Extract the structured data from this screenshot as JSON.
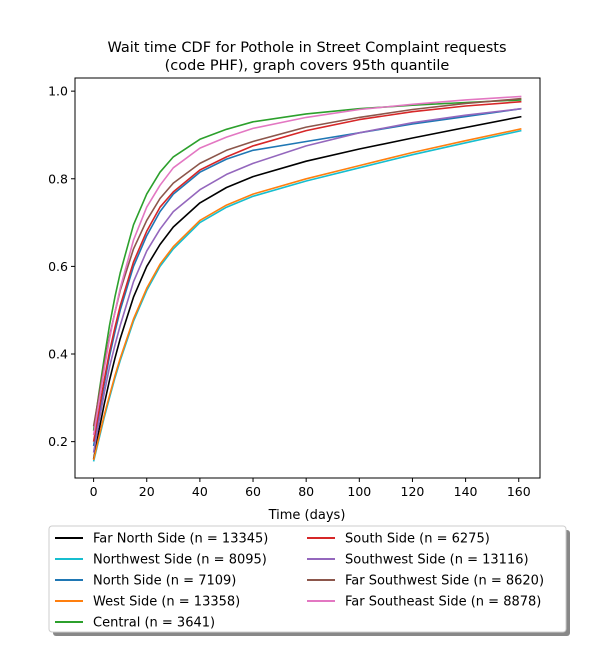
{
  "chart_data": {
    "type": "line",
    "title_line1": "Wait time CDF for Pothole in Street Complaint  requests",
    "title_line2": "(code PHF), graph covers 95th quantile",
    "xlabel": "Time (days)",
    "ylabel": "",
    "xlim": [
      -7,
      168
    ],
    "ylim": [
      0.117,
      1.03
    ],
    "xticks": [
      0,
      20,
      40,
      60,
      80,
      100,
      120,
      140,
      160
    ],
    "yticks": [
      0.2,
      0.4,
      0.6,
      0.8,
      1.0
    ],
    "grid": false,
    "legend_placement": "below-center",
    "legend_columns": 2,
    "series": [
      {
        "name": "Far North Side (n = 13345)",
        "color": "#000000",
        "x": [
          0,
          2,
          4,
          6,
          8,
          10,
          15,
          20,
          25,
          30,
          40,
          50,
          60,
          80,
          100,
          120,
          140,
          161
        ],
        "y": [
          0.16,
          0.225,
          0.285,
          0.34,
          0.39,
          0.435,
          0.53,
          0.6,
          0.65,
          0.69,
          0.745,
          0.78,
          0.805,
          0.84,
          0.868,
          0.893,
          0.917,
          0.942
        ]
      },
      {
        "name": "Northwest Side (n = 8095)",
        "color": "#17becf",
        "x": [
          0,
          2,
          4,
          6,
          8,
          10,
          15,
          20,
          25,
          30,
          40,
          50,
          60,
          80,
          100,
          120,
          140,
          161
        ],
        "y": [
          0.155,
          0.205,
          0.255,
          0.3,
          0.345,
          0.385,
          0.475,
          0.545,
          0.6,
          0.64,
          0.7,
          0.735,
          0.76,
          0.795,
          0.825,
          0.855,
          0.882,
          0.91
        ]
      },
      {
        "name": "North Side (n = 7109)",
        "color": "#1f77b4",
        "x": [
          0,
          2,
          4,
          6,
          8,
          10,
          15,
          20,
          25,
          30,
          40,
          50,
          60,
          80,
          100,
          120,
          140,
          161
        ],
        "y": [
          0.19,
          0.26,
          0.33,
          0.395,
          0.45,
          0.5,
          0.6,
          0.67,
          0.725,
          0.765,
          0.815,
          0.845,
          0.865,
          0.885,
          0.905,
          0.925,
          0.942,
          0.96
        ]
      },
      {
        "name": "West Side (n = 13358)",
        "color": "#ff7f0e",
        "x": [
          0,
          2,
          4,
          6,
          8,
          10,
          15,
          20,
          25,
          30,
          40,
          50,
          60,
          80,
          100,
          120,
          140,
          161
        ],
        "y": [
          0.158,
          0.21,
          0.26,
          0.305,
          0.35,
          0.39,
          0.48,
          0.55,
          0.605,
          0.645,
          0.705,
          0.74,
          0.765,
          0.8,
          0.83,
          0.86,
          0.887,
          0.914
        ]
      },
      {
        "name": "Central (n = 3641)",
        "color": "#2ca02c",
        "x": [
          0,
          2,
          4,
          6,
          8,
          10,
          15,
          20,
          25,
          30,
          40,
          50,
          60,
          80,
          100,
          120,
          140,
          161
        ],
        "y": [
          0.225,
          0.31,
          0.39,
          0.465,
          0.53,
          0.585,
          0.695,
          0.765,
          0.815,
          0.85,
          0.89,
          0.913,
          0.93,
          0.948,
          0.96,
          0.968,
          0.974,
          0.98
        ]
      },
      {
        "name": "South Side (n = 6275)",
        "color": "#d62728",
        "x": [
          0,
          2,
          4,
          6,
          8,
          10,
          15,
          20,
          25,
          30,
          40,
          50,
          60,
          80,
          100,
          120,
          140,
          161
        ],
        "y": [
          0.2,
          0.27,
          0.34,
          0.405,
          0.46,
          0.51,
          0.61,
          0.68,
          0.735,
          0.77,
          0.82,
          0.85,
          0.875,
          0.91,
          0.935,
          0.953,
          0.966,
          0.976
        ]
      },
      {
        "name": "Southwest Side (n = 13116)",
        "color": "#9467bd",
        "x": [
          0,
          2,
          4,
          6,
          8,
          10,
          15,
          20,
          25,
          30,
          40,
          50,
          60,
          80,
          100,
          120,
          140,
          161
        ],
        "y": [
          0.175,
          0.245,
          0.31,
          0.37,
          0.42,
          0.465,
          0.565,
          0.635,
          0.685,
          0.725,
          0.775,
          0.81,
          0.835,
          0.875,
          0.905,
          0.928,
          0.945,
          0.96
        ]
      },
      {
        "name": "Far Southwest Side (n = 8620)",
        "color": "#8c564b",
        "x": [
          0,
          2,
          4,
          6,
          8,
          10,
          15,
          20,
          25,
          30,
          40,
          50,
          60,
          80,
          100,
          120,
          140,
          161
        ],
        "y": [
          0.235,
          0.305,
          0.375,
          0.44,
          0.495,
          0.545,
          0.64,
          0.705,
          0.755,
          0.79,
          0.835,
          0.865,
          0.885,
          0.918,
          0.94,
          0.958,
          0.972,
          0.983
        ]
      },
      {
        "name": "Far Southeast Side (n = 8878)",
        "color": "#e377c2",
        "x": [
          0,
          2,
          4,
          6,
          8,
          10,
          15,
          20,
          25,
          30,
          40,
          50,
          60,
          80,
          100,
          120,
          140,
          161
        ],
        "y": [
          0.215,
          0.29,
          0.365,
          0.435,
          0.495,
          0.55,
          0.66,
          0.735,
          0.785,
          0.825,
          0.87,
          0.895,
          0.915,
          0.94,
          0.958,
          0.97,
          0.98,
          0.988
        ]
      }
    ]
  }
}
